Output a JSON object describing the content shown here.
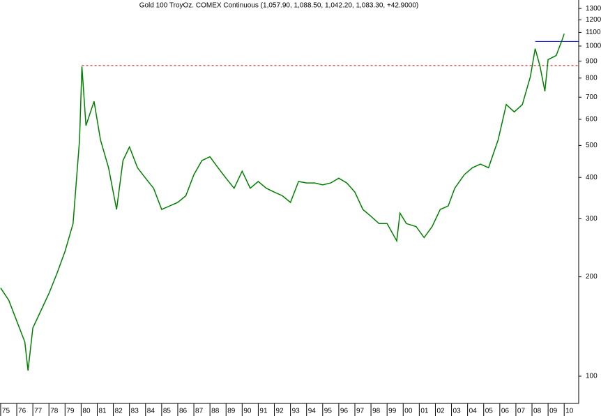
{
  "chart_data": {
    "type": "line",
    "title": "Gold 100 TroyOz. COMEX Continuous (1,057.90, 1,088.50, 1,042.20, 1,083.30, +42.9000)",
    "log_scale": true,
    "x": [
      1975.0,
      1975.5,
      1976.0,
      1976.5,
      1976.7,
      1977.0,
      1977.5,
      1978.0,
      1978.5,
      1979.0,
      1979.5,
      1979.9,
      1980.05,
      1980.3,
      1980.8,
      1981.2,
      1981.7,
      1982.2,
      1982.6,
      1983.0,
      1983.5,
      1984.0,
      1984.5,
      1985.0,
      1985.5,
      1986.0,
      1986.5,
      1987.0,
      1987.5,
      1988.0,
      1988.5,
      1989.0,
      1989.5,
      1990.0,
      1990.5,
      1991.0,
      1991.5,
      1992.0,
      1992.5,
      1993.0,
      1993.5,
      1994.0,
      1994.5,
      1995.0,
      1995.5,
      1996.0,
      1996.5,
      1997.0,
      1997.5,
      1998.0,
      1998.5,
      1999.0,
      1999.6,
      1999.8,
      2000.2,
      2000.8,
      2001.3,
      2001.8,
      2002.3,
      2002.8,
      2003.2,
      2003.8,
      2004.3,
      2004.8,
      2005.3,
      2005.9,
      2006.4,
      2006.9,
      2007.4,
      2007.9,
      2008.2,
      2008.5,
      2008.8,
      2009.0,
      2009.5,
      2009.9,
      2010.0
    ],
    "series": [
      {
        "color": "#008000",
        "values": [
          185,
          170,
          147,
          127,
          104,
          140,
          158,
          178,
          205,
          239,
          290,
          520,
          867,
          574,
          680,
          520,
          428,
          320,
          450,
          495,
          428,
          398,
          371,
          320,
          328,
          336,
          352,
          408,
          450,
          462,
          428,
          398,
          371,
          418,
          371,
          389,
          371,
          361,
          352,
          336,
          389,
          385,
          385,
          380,
          385,
          398,
          385,
          361,
          320,
          305,
          290,
          290,
          257,
          312,
          290,
          284,
          263,
          284,
          320,
          328,
          371,
          408,
          428,
          439,
          428,
          520,
          665,
          632,
          665,
          808,
          982,
          867,
          730,
          910,
          936,
          1053,
          1090
        ]
      }
    ],
    "xlim": [
      1974.96,
      2010.9
    ],
    "ylim": [
      82.7,
      1379
    ],
    "yticks": [
      100,
      200,
      300,
      400,
      500,
      600,
      700,
      800,
      900,
      1000,
      1100,
      1200,
      1300
    ],
    "xticks": [
      {
        "value": 1975,
        "label": "75"
      },
      {
        "value": 1976,
        "label": "76"
      },
      {
        "value": 1977,
        "label": "77"
      },
      {
        "value": 1978,
        "label": "78"
      },
      {
        "value": 1979,
        "label": "79"
      },
      {
        "value": 1980,
        "label": "80"
      },
      {
        "value": 1981,
        "label": "81"
      },
      {
        "value": 1982,
        "label": "82"
      },
      {
        "value": 1983,
        "label": "83"
      },
      {
        "value": 1984,
        "label": "84"
      },
      {
        "value": 1985,
        "label": "85"
      },
      {
        "value": 1986,
        "label": "86"
      },
      {
        "value": 1987,
        "label": "87"
      },
      {
        "value": 1988,
        "label": "88"
      },
      {
        "value": 1989,
        "label": "89"
      },
      {
        "value": 1990,
        "label": "90"
      },
      {
        "value": 1991,
        "label": "91"
      },
      {
        "value": 1992,
        "label": "92"
      },
      {
        "value": 1993,
        "label": "93"
      },
      {
        "value": 1994,
        "label": "94"
      },
      {
        "value": 1995,
        "label": "95"
      },
      {
        "value": 1996,
        "label": "96"
      },
      {
        "value": 1997,
        "label": "97"
      },
      {
        "value": 1998,
        "label": "98"
      },
      {
        "value": 1999,
        "label": "99"
      },
      {
        "value": 2000,
        "label": "00"
      },
      {
        "value": 2001,
        "label": "01"
      },
      {
        "value": 2002,
        "label": "02"
      },
      {
        "value": 2003,
        "label": "03"
      },
      {
        "value": 2004,
        "label": "04"
      },
      {
        "value": 2005,
        "label": "05"
      },
      {
        "value": 2006,
        "label": "06"
      },
      {
        "value": 2007,
        "label": "07"
      },
      {
        "value": 2008,
        "label": "08"
      },
      {
        "value": 2009,
        "label": "09"
      },
      {
        "value": 2010,
        "label": "10"
      }
    ],
    "reference_lines": [
      {
        "value": 873,
        "start": 1980.05,
        "color": "#cc0000",
        "dashed": true
      },
      {
        "value": 1033,
        "start": 2008.2,
        "color": "#0000cc",
        "dashed": false
      }
    ]
  }
}
